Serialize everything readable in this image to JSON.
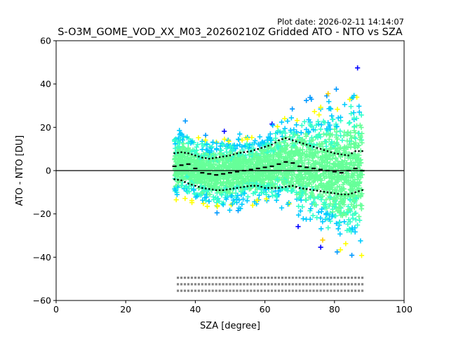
{
  "chart_data": {
    "type": "scatter",
    "title": "S-O3M_GOME_VOD_XX_M03_20260210Z Gridded ATO - NTO vs SZA",
    "plot_date": "Plot date: 2026-02-11 14:14:07",
    "xlabel": "SZA [degree]",
    "ylabel": "ATO - NTO [DU]",
    "xlim": [
      0,
      100
    ],
    "ylim": [
      -60,
      60
    ],
    "xticks": [
      0,
      20,
      40,
      60,
      80,
      100
    ],
    "yticks": [
      -60,
      -40,
      -20,
      0,
      20,
      40,
      60
    ],
    "xtick_labels": [
      "0",
      "20",
      "40",
      "60",
      "80",
      "100"
    ],
    "ytick_labels": [
      "−60",
      "−40",
      "−20",
      "0",
      "20",
      "40",
      "60"
    ],
    "zero_line": 0,
    "scatter_x_range": [
      34,
      88
    ],
    "marker": "+",
    "density_colors": [
      "#66ff99",
      "#33ffcc",
      "#00ccff",
      "#0099ff",
      "#0000ff",
      "#ffff00",
      "#ffcc00"
    ],
    "series": [
      {
        "name": "mean",
        "style": "solid-steps",
        "x": [
          34,
          36,
          38,
          40,
          42,
          44,
          46,
          48,
          50,
          52,
          54,
          56,
          58,
          60,
          62,
          64,
          66,
          68,
          70,
          72,
          74,
          76,
          78,
          80,
          82,
          84,
          86,
          88
        ],
        "y": [
          2,
          2.5,
          3,
          1,
          -1,
          -1.5,
          -2,
          -1.5,
          -1,
          -0.5,
          0,
          0.5,
          1,
          1.5,
          2,
          3,
          4,
          3.5,
          2,
          1.5,
          1,
          0.5,
          0,
          -0.5,
          -1,
          0,
          1,
          0
        ]
      },
      {
        "name": "mean+std",
        "style": "dotted",
        "x": [
          34,
          36,
          38,
          40,
          42,
          44,
          46,
          48,
          50,
          52,
          54,
          56,
          58,
          60,
          62,
          64,
          66,
          68,
          70,
          72,
          74,
          76,
          78,
          80,
          82,
          84,
          86,
          88
        ],
        "y": [
          8,
          8.5,
          8,
          7,
          6,
          5.5,
          6,
          6.5,
          7,
          8,
          8.5,
          9,
          10,
          11,
          12,
          14,
          15,
          14,
          13,
          12,
          11,
          10,
          9,
          8,
          7.5,
          7,
          9,
          9
        ]
      },
      {
        "name": "mean-std",
        "style": "dotted",
        "x": [
          34,
          36,
          38,
          40,
          42,
          44,
          46,
          48,
          50,
          52,
          54,
          56,
          58,
          60,
          62,
          64,
          66,
          68,
          70,
          72,
          74,
          76,
          78,
          80,
          82,
          84,
          86,
          88
        ],
        "y": [
          -4,
          -4.5,
          -6,
          -7,
          -8,
          -8.5,
          -9,
          -9,
          -8.5,
          -8,
          -7.5,
          -7,
          -7,
          -8,
          -8,
          -8,
          -7.5,
          -7,
          -8,
          -8.5,
          -9,
          -9.5,
          -10,
          -10.5,
          -11,
          -11,
          -10,
          -9
        ]
      }
    ]
  }
}
